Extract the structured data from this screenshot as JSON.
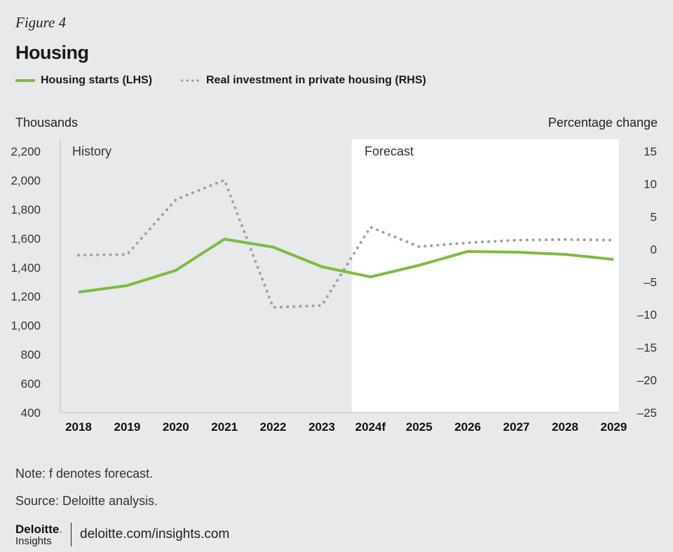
{
  "figure_label": "Figure 4",
  "title": "Housing",
  "legend": {
    "series1": "Housing starts (LHS)",
    "series2": "Real investment in private housing (RHS)"
  },
  "left_axis_label": "Thousands",
  "right_axis_label": "Percentage change",
  "regions": {
    "history": "History",
    "forecast": "Forecast"
  },
  "note": "Note: f denotes forecast.",
  "source": "Source: Deloitte analysis.",
  "brand": {
    "name": "Deloitte",
    "dot": ".",
    "sub": "Insights",
    "url": "deloitte.com/insights.com"
  },
  "colors": {
    "series1": "#7dbb42",
    "series2": "#a0a0a0",
    "background": "#e8e9ea",
    "forecast_bg": "#ffffff"
  },
  "chart_data": {
    "type": "line",
    "categories": [
      "2018",
      "2019",
      "2020",
      "2021",
      "2022",
      "2023",
      "2024f",
      "2025",
      "2026",
      "2027",
      "2028",
      "2029"
    ],
    "forecast_start": "2024f",
    "y_left": {
      "label": "Thousands",
      "ylim": [
        400,
        2200
      ],
      "ticks": [
        400,
        600,
        800,
        1000,
        1200,
        1400,
        1600,
        1800,
        2000,
        2200
      ],
      "tick_labels": [
        "400",
        "600",
        "800",
        "1,000",
        "1,200",
        "1,400",
        "1,600",
        "1,800",
        "2,000",
        "2,200"
      ]
    },
    "y_right": {
      "label": "Percentage change",
      "ylim": [
        -25,
        15
      ],
      "ticks": [
        -25,
        -20,
        -15,
        -10,
        -5,
        0,
        5,
        10,
        15
      ],
      "tick_labels": [
        "–25",
        "–20",
        "–15",
        "–10",
        "–5",
        "0",
        "5",
        "10",
        "15"
      ]
    },
    "series": [
      {
        "name": "Housing starts (LHS)",
        "axis": "left",
        "style": "solid",
        "values": [
          1230,
          1275,
          1380,
          1595,
          1540,
          1405,
          1335,
          1415,
          1510,
          1505,
          1490,
          1455
        ]
      },
      {
        "name": "Real investment in private housing (RHS)",
        "axis": "right",
        "style": "dotted",
        "values": [
          -0.9,
          -0.8,
          7.6,
          10.6,
          -8.9,
          -8.6,
          3.4,
          0.4,
          1.0,
          1.4,
          1.5,
          1.4
        ]
      }
    ]
  }
}
